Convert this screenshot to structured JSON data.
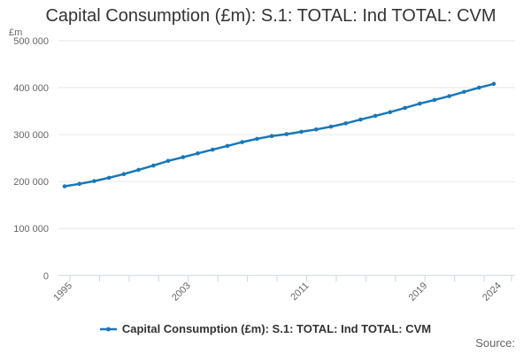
{
  "title": "Capital Consumption (£m): S.1: TOTAL: Ind TOTAL: CVM",
  "y_axis_unit": "£m",
  "source_label": "Source:",
  "legend": {
    "label": "Capital Consumption (£m): S.1: TOTAL: Ind TOTAL: CVM",
    "symbol": "line-with-marker"
  },
  "colors": {
    "series": "#1878b8",
    "gridline": "#e6e6e6",
    "axis_line": "#ccd6eb",
    "title_text": "#333333",
    "axis_label_text": "#666666",
    "legend_text": "#333333",
    "source_text": "#666666",
    "background": "#ffffff"
  },
  "chart_data": {
    "type": "line",
    "title": "Capital Consumption (£m): S.1: TOTAL: Ind TOTAL: CVM",
    "ylabel": "£m",
    "xlabel": "",
    "ylim": [
      0,
      500000
    ],
    "yticks": [
      0,
      100000,
      200000,
      300000,
      400000,
      500000
    ],
    "ytick_labels": [
      "0",
      "100 000",
      "200 000",
      "300 000",
      "400 000",
      "500 000"
    ],
    "x": [
      1995,
      1996,
      1997,
      1998,
      1999,
      2000,
      2001,
      2002,
      2003,
      2004,
      2005,
      2006,
      2007,
      2008,
      2009,
      2010,
      2011,
      2012,
      2013,
      2014,
      2015,
      2016,
      2017,
      2018,
      2019,
      2020,
      2021,
      2022,
      2023,
      2024
    ],
    "xtick_labeled_years": [
      1995,
      2003,
      2011,
      2019,
      2024
    ],
    "minor_tick_interval_years": 2,
    "grid": "horizontal",
    "legend_position": "bottom-center",
    "markers": true,
    "series": [
      {
        "name": "Capital Consumption (£m): S.1: TOTAL: Ind TOTAL: CVM",
        "values": [
          190000,
          195000,
          201000,
          208000,
          216000,
          225000,
          234000,
          244000,
          252000,
          260000,
          268000,
          276000,
          284000,
          291000,
          297000,
          301000,
          306000,
          311000,
          317000,
          324000,
          332000,
          340000,
          348000,
          357000,
          366000,
          374000,
          382000,
          391000,
          400000,
          408000
        ]
      }
    ]
  }
}
